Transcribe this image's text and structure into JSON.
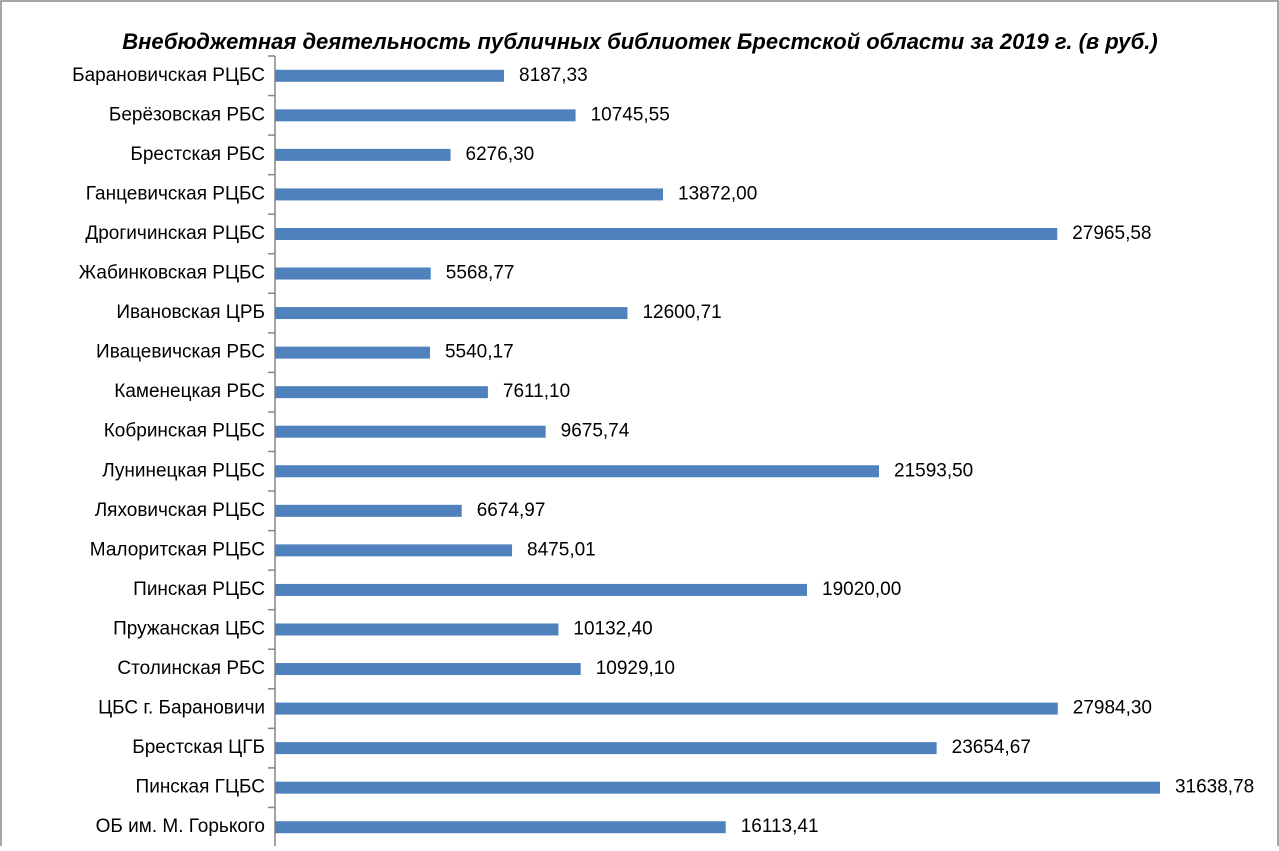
{
  "chart_data": {
    "type": "bar",
    "orientation": "horizontal",
    "title": "Внебюджетная деятельность публичных библиотек Брестской области за 2019 г. (в руб.)",
    "categories": [
      "Барановичская РЦБС",
      "Берёзовская РБС",
      "Брестская РБС",
      "Ганцевичская РЦБС",
      "Дрогичинская РЦБС",
      "Жабинковская РЦБС",
      "Ивановская ЦРБ",
      "Ивацевичская РБС",
      "Каменецкая РБС",
      "Кобринская РЦБС",
      "Лунинецкая РЦБС",
      "Ляховичская РЦБС",
      "Малоритская РЦБС",
      "Пинская РЦБС",
      "Пружанская ЦБС",
      "Столинская РБС",
      "ЦБС г. Барановичи",
      "Брестская ЦГБ",
      "Пинская ГЦБС",
      "ОБ им. М. Горького"
    ],
    "values": [
      8187.33,
      10745.55,
      6276.3,
      13872.0,
      27965.58,
      5568.77,
      12600.71,
      5540.17,
      7611.1,
      9675.74,
      21593.5,
      6674.97,
      8475.01,
      19020.0,
      10132.4,
      10929.1,
      27984.3,
      23654.67,
      31638.78,
      16113.41
    ],
    "value_labels": [
      "8187,33",
      "10745,55",
      "6276,30",
      "13872,00",
      "27965,58",
      "5568,77",
      "12600,71",
      "5540,17",
      "7611,10",
      "9675,74",
      "21593,50",
      "6674,97",
      "8475,01",
      "19020,00",
      "10132,40",
      "10929,10",
      "27984,30",
      "23654,67",
      "31638,78",
      "16113,41"
    ],
    "color": "#4f81bd",
    "xlim": [
      0,
      35000
    ]
  }
}
